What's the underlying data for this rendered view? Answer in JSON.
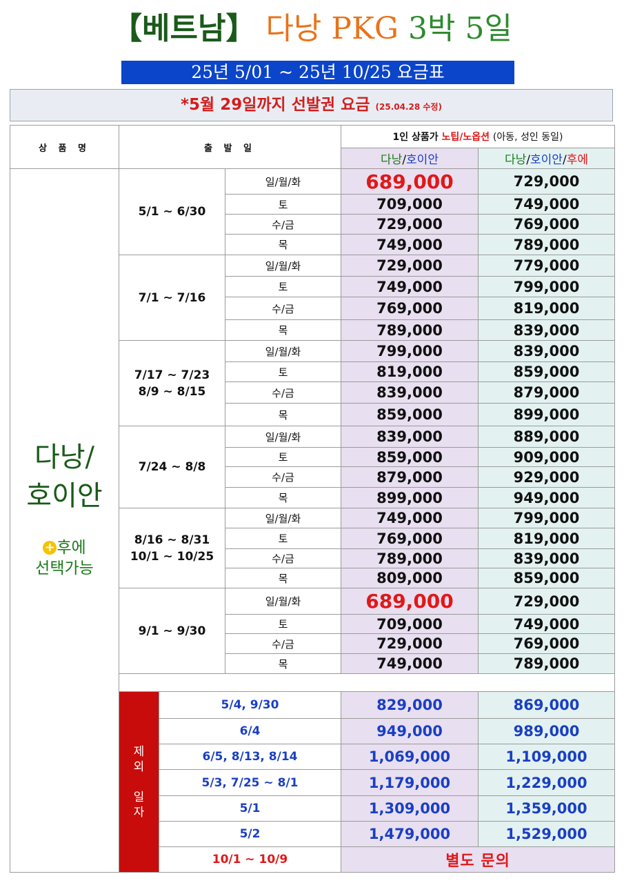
{
  "title": {
    "bracket_open": "【",
    "country": "베트남",
    "bracket_close": "】",
    "destination": "다낭",
    "pkg": "PKG",
    "nights": "3박",
    "days": "5일"
  },
  "period": "25년 5/01 ~ 25년 10/25 요금표",
  "notice": {
    "main": "*5월 29일까지 선발권 요금",
    "revised": "(25.04.28 수정)"
  },
  "header": {
    "product": "상 품 명",
    "departure": "출 발 일",
    "price_prefix": "1인 상품가",
    "price_highlight": "노팁/노옵션",
    "price_suffix": "(아동, 성인 동일)",
    "col1_a": "다낭",
    "col1_b": "/",
    "col1_c": "호이안",
    "col2_a": "다낭",
    "col2_b": "/",
    "col2_c": "호이안",
    "col2_d": "/",
    "col2_e": "후에"
  },
  "product": {
    "line1": "다낭/",
    "line2": "호이안",
    "plus": "+",
    "hue_line1": "후에",
    "hue_line2": "선택가능"
  },
  "days": {
    "d1": "일/월/화",
    "d2": "토",
    "d3": "수/금",
    "d4": "목"
  },
  "periods": [
    {
      "range1": "5/1 ~ 6/30",
      "range2": "",
      "prices": [
        [
          "689,000",
          "729,000"
        ],
        [
          "709,000",
          "749,000"
        ],
        [
          "729,000",
          "769,000"
        ],
        [
          "749,000",
          "789,000"
        ]
      ]
    },
    {
      "range1": "7/1 ~ 7/16",
      "range2": "",
      "prices": [
        [
          "729,000",
          "779,000"
        ],
        [
          "749,000",
          "799,000"
        ],
        [
          "769,000",
          "819,000"
        ],
        [
          "789,000",
          "839,000"
        ]
      ]
    },
    {
      "range1": "7/17 ~ 7/23",
      "range2": "8/9 ~ 8/15",
      "prices": [
        [
          "799,000",
          "839,000"
        ],
        [
          "819,000",
          "859,000"
        ],
        [
          "839,000",
          "879,000"
        ],
        [
          "859,000",
          "899,000"
        ]
      ]
    },
    {
      "range1": "7/24 ~ 8/8",
      "range2": "",
      "prices": [
        [
          "839,000",
          "889,000"
        ],
        [
          "859,000",
          "909,000"
        ],
        [
          "879,000",
          "929,000"
        ],
        [
          "899,000",
          "949,000"
        ]
      ]
    },
    {
      "range1": "8/16 ~ 8/31",
      "range2": "10/1 ~ 10/25",
      "prices": [
        [
          "749,000",
          "799,000"
        ],
        [
          "769,000",
          "819,000"
        ],
        [
          "789,000",
          "839,000"
        ],
        [
          "809,000",
          "859,000"
        ]
      ]
    },
    {
      "range1": "9/1 ~ 9/30",
      "range2": "",
      "prices": [
        [
          "689,000",
          "729,000"
        ],
        [
          "709,000",
          "749,000"
        ],
        [
          "729,000",
          "769,000"
        ],
        [
          "749,000",
          "789,000"
        ]
      ]
    }
  ],
  "excluded": {
    "label_chars": [
      "제",
      "외",
      "일",
      "자"
    ],
    "rows": [
      {
        "dates": "5/4, 9/30",
        "p1": "829,000",
        "p2": "869,000"
      },
      {
        "dates": "6/4",
        "p1": "949,000",
        "p2": "989,000"
      },
      {
        "dates": "6/5, 8/13, 8/14",
        "p1": "1,069,000",
        "p2": "1,109,000"
      },
      {
        "dates": "5/3, 7/25 ~ 8/1",
        "p1": "1,179,000",
        "p2": "1,229,000"
      },
      {
        "dates": "5/1",
        "p1": "1,309,000",
        "p2": "1,359,000"
      },
      {
        "dates": "5/2",
        "p1": "1,479,000",
        "p2": "1,529,000"
      }
    ],
    "inquiry_dates": "10/1 ~ 10/9",
    "inquiry_text": "별도 문의"
  }
}
